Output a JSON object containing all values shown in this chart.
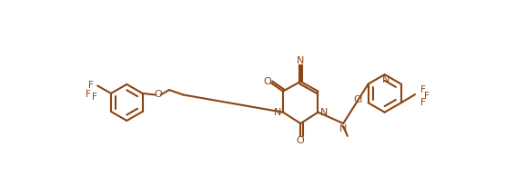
{
  "bg_color": "#ffffff",
  "bond_color": "#8B4513",
  "text_color": "#8B4513",
  "lw": 1.5,
  "fs": 7.5,
  "figsize": [
    5.67,
    2.16
  ],
  "dpi": 100,
  "xlim": [
    0,
    567
  ],
  "ylim": [
    0,
    216
  ]
}
